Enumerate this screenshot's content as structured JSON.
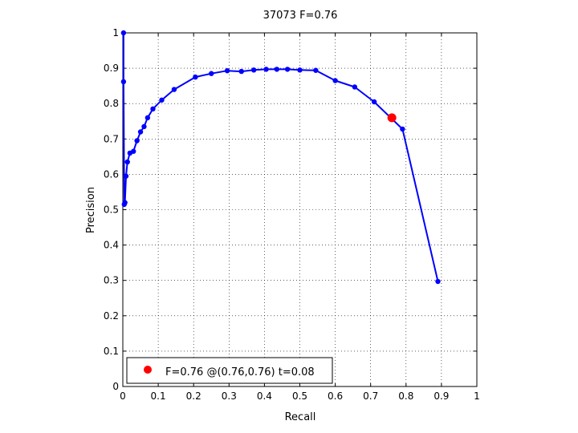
{
  "chart_data": {
    "type": "line",
    "title": "37073 F=0.76",
    "xlabel": "Recall",
    "ylabel": "Precision",
    "xlim": [
      0,
      1
    ],
    "ylim": [
      0,
      1
    ],
    "grid": true,
    "legend_position": "bottom-left",
    "x_ticks": [
      "0",
      "0.1",
      "0.2",
      "0.3",
      "0.4",
      "0.5",
      "0.6",
      "0.7",
      "0.8",
      "0.9",
      "1"
    ],
    "y_ticks": [
      "0",
      "0.1",
      "0.2",
      "0.3",
      "0.4",
      "0.5",
      "0.6",
      "0.7",
      "0.8",
      "0.9",
      "1"
    ],
    "series": [
      {
        "color": "#0000ff",
        "x": [
          0.002,
          0.002,
          0.004,
          0.006,
          0.009,
          0.013,
          0.02,
          0.03,
          0.04,
          0.05,
          0.06,
          0.07,
          0.085,
          0.11,
          0.145,
          0.205,
          0.25,
          0.295,
          0.335,
          0.37,
          0.405,
          0.435,
          0.465,
          0.5,
          0.545,
          0.6,
          0.655,
          0.71,
          0.79,
          0.89
        ],
        "y": [
          1.0,
          0.862,
          0.515,
          0.52,
          0.595,
          0.635,
          0.66,
          0.665,
          0.695,
          0.72,
          0.735,
          0.76,
          0.785,
          0.81,
          0.84,
          0.875,
          0.885,
          0.893,
          0.891,
          0.895,
          0.897,
          0.897,
          0.897,
          0.895,
          0.894,
          0.865,
          0.847,
          0.805,
          0.728,
          0.297
        ]
      }
    ],
    "highlight": {
      "x": 0.76,
      "y": 0.76,
      "color": "#ff0000",
      "legend_label": "F=0.76 @(0.76,0.76) t=0.08"
    }
  }
}
